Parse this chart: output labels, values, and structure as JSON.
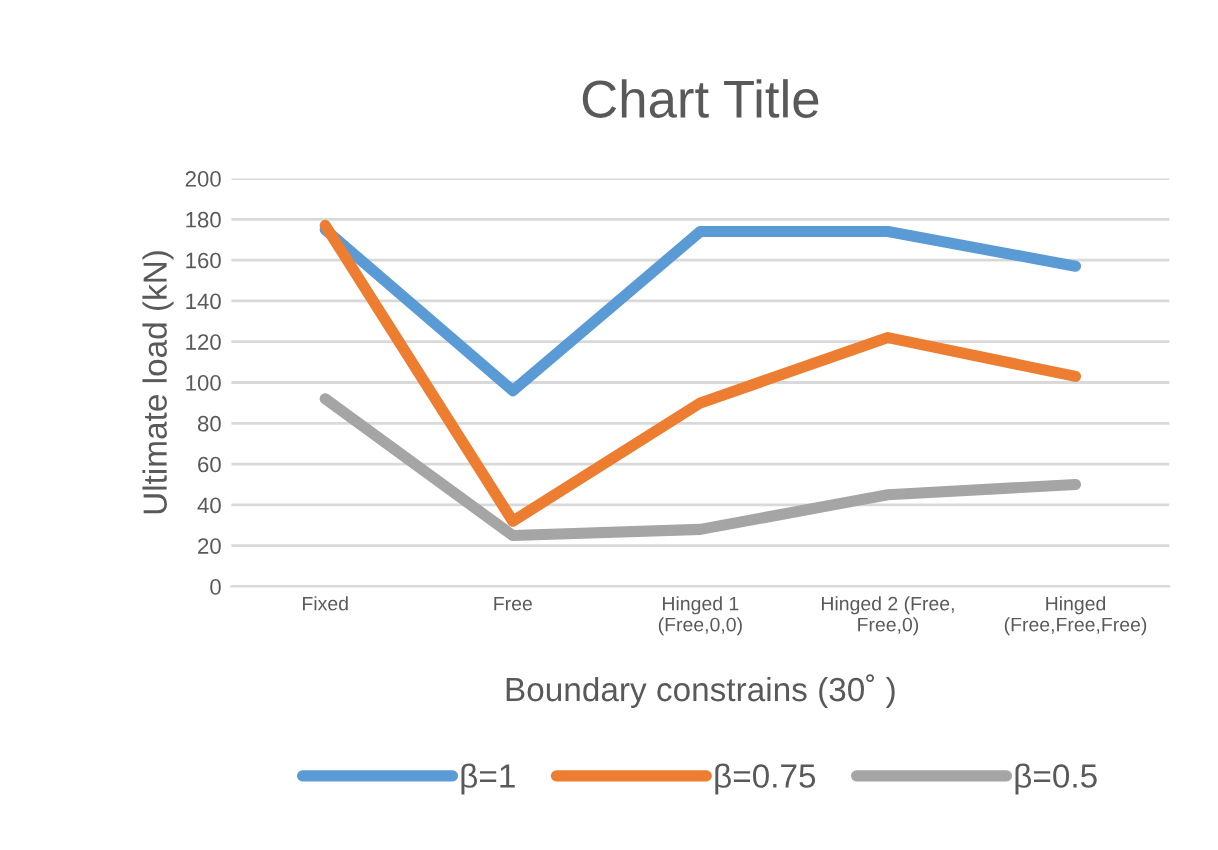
{
  "chart_data": {
    "type": "line",
    "title": "Chart Title",
    "xlabel": "Boundary constrains (30˚ )",
    "ylabel": "Ultimate load (kN)",
    "categories": [
      "Fixed",
      "Free",
      "Hinged 1\n(Free,0,0)",
      "Hinged 2 (Free,\nFree,0)",
      "Hinged\n(Free,Free,Free)"
    ],
    "series": [
      {
        "name": "β=1",
        "color": "#5b9bd5",
        "values": [
          175,
          96,
          174,
          174,
          157
        ]
      },
      {
        "name": "β=0.75",
        "color": "#ed7d31",
        "values": [
          177,
          32,
          90,
          122,
          103
        ]
      },
      {
        "name": "β=0.5",
        "color": "#a5a5a5",
        "values": [
          92,
          25,
          28,
          45,
          50
        ]
      }
    ],
    "ylim": [
      0,
      200
    ],
    "yticks": [
      0,
      20,
      40,
      60,
      80,
      100,
      120,
      140,
      160,
      180,
      200
    ],
    "grid": "y",
    "legend": "bottom",
    "marker": "none",
    "line_style": "solid"
  }
}
